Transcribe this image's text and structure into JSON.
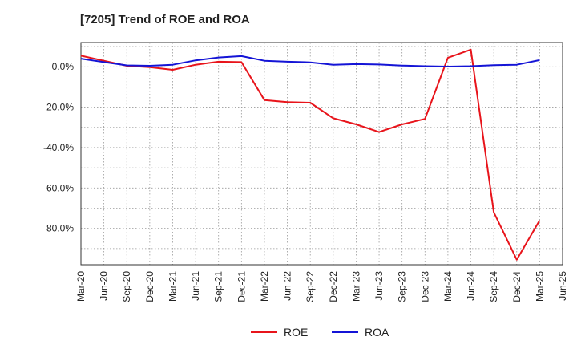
{
  "chart_data": {
    "type": "line",
    "title": "[7205]  Trend of ROE and ROA",
    "xlabel": "",
    "ylabel": "",
    "x_tick_labels": [
      "Mar-20",
      "Jun-20",
      "Sep-20",
      "Dec-20",
      "Mar-21",
      "Jun-21",
      "Sep-21",
      "Dec-21",
      "Mar-22",
      "Jun-22",
      "Sep-22",
      "Dec-22",
      "Mar-23",
      "Jun-23",
      "Sep-23",
      "Dec-23",
      "Mar-24",
      "Jun-24",
      "Sep-24",
      "Dec-24",
      "Mar-25",
      "Jun-25"
    ],
    "y_ticks": [
      0,
      -20,
      -40,
      -60,
      -80
    ],
    "y_tick_labels": [
      "0.0%",
      "-20.0%",
      "-40.0%",
      "-60.0%",
      "-80.0%"
    ],
    "ylim": [
      -98,
      12
    ],
    "grid": true,
    "legend_position": "bottom",
    "categories": [
      "Mar-20",
      "Jun-20",
      "Sep-20",
      "Dec-20",
      "Mar-21",
      "Jun-21",
      "Sep-21",
      "Dec-21",
      "Mar-22",
      "Jun-22",
      "Sep-22",
      "Dec-22",
      "Mar-23",
      "Jun-23",
      "Sep-23",
      "Dec-23",
      "Mar-24",
      "Jun-24",
      "Sep-24",
      "Dec-24",
      "Mar-25"
    ],
    "series": [
      {
        "name": "ROE",
        "color": "#e8141b",
        "values": [
          5.5,
          3.0,
          0.5,
          -0.2,
          -1.5,
          1.0,
          2.5,
          2.3,
          -16.5,
          -17.5,
          -17.8,
          -25.5,
          -28.5,
          -32.3,
          -28.5,
          -25.8,
          4.5,
          8.5,
          -72.0,
          -95.5,
          -76.0
        ]
      },
      {
        "name": "ROA",
        "color": "#1414d6",
        "values": [
          4.0,
          2.3,
          0.7,
          0.5,
          1.0,
          3.2,
          4.6,
          5.3,
          3.0,
          2.5,
          2.2,
          1.0,
          1.3,
          1.1,
          0.6,
          0.3,
          0.1,
          0.3,
          0.8,
          1.0,
          3.3
        ]
      }
    ]
  }
}
